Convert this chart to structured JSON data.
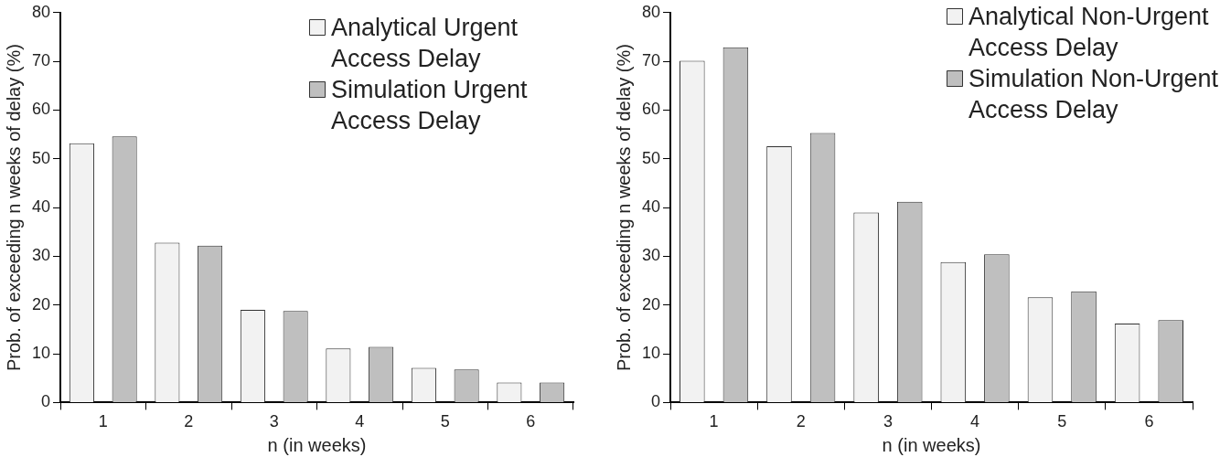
{
  "chart_data": [
    {
      "type": "bar",
      "xlabel": "n (in weeks)",
      "ylabel": "Prob. of exceeding n weeks of delay (%)",
      "categories": [
        "1",
        "2",
        "3",
        "4",
        "5",
        "6"
      ],
      "series": [
        {
          "name": "Analytical Urgent Access Delay",
          "color": "#f2f2f2",
          "values": [
            53.2,
            32.8,
            19.0,
            11.1,
            7.1,
            4.1
          ]
        },
        {
          "name": "Simulation Urgent Access Delay",
          "color": "#bfbfbf",
          "values": [
            54.6,
            32.2,
            18.8,
            11.4,
            6.8,
            4.1
          ]
        }
      ],
      "ylim": [
        0,
        80
      ],
      "yticks": [
        0,
        10,
        20,
        30,
        40,
        50,
        60,
        70,
        80
      ],
      "grid": false,
      "legend": "top right"
    },
    {
      "type": "bar",
      "xlabel": "n (in weeks)",
      "ylabel": "Prob. of exceeding n weeks of delay (%)",
      "categories": [
        "1",
        "2",
        "3",
        "4",
        "5",
        "6"
      ],
      "series": [
        {
          "name": "Analytical Non-Urgent Access Delay",
          "color": "#f2f2f2",
          "values": [
            70.1,
            52.6,
            39.0,
            28.8,
            21.6,
            16.2
          ]
        },
        {
          "name": "Simulation Non-Urgent Access Delay",
          "color": "#bfbfbf",
          "values": [
            72.9,
            55.3,
            41.2,
            30.4,
            22.8,
            16.9
          ]
        }
      ],
      "ylim": [
        0,
        80
      ],
      "yticks": [
        0,
        10,
        20,
        30,
        40,
        50,
        60,
        70,
        80
      ],
      "grid": false,
      "legend": "top right"
    }
  ]
}
